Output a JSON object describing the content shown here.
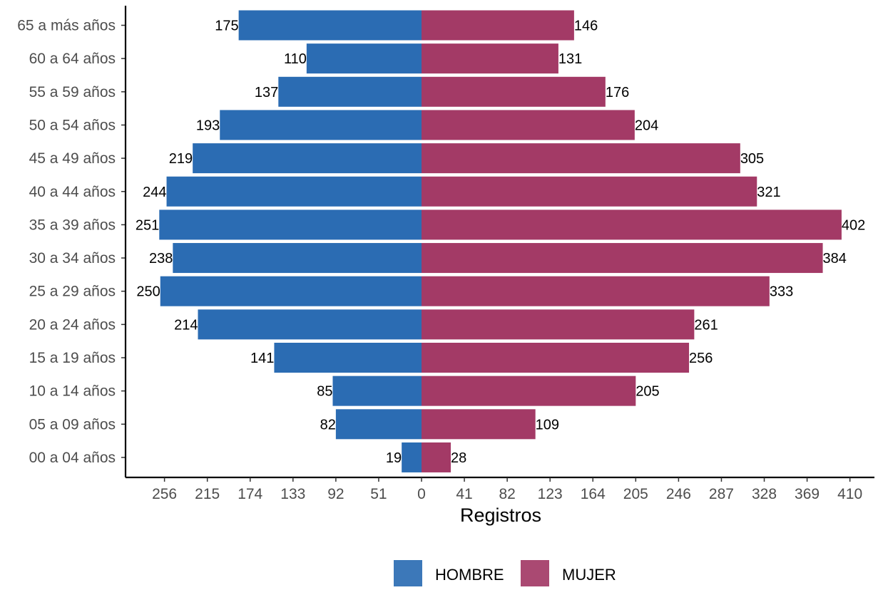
{
  "chart_data": {
    "type": "bar",
    "orientation": "horizontal",
    "layout": "population-pyramid",
    "xlabel": "Registros",
    "ylabel": "",
    "categories": [
      "00 a 04 años",
      "05 a 09 años",
      "10 a 14 años",
      "15 a 19 años",
      "20 a 24 años",
      "25 a 29 años",
      "30 a 34 años",
      "35 a 39 años",
      "40 a 44 años",
      "45 a 49 años",
      "50 a 54 años",
      "55 a 59 años",
      "60 a 64 años",
      "65 a más años"
    ],
    "series": [
      {
        "name": "HOMBRE",
        "side": "left",
        "color": "#2B6CB3",
        "values": [
          19,
          82,
          85,
          141,
          214,
          250,
          238,
          251,
          244,
          219,
          193,
          137,
          110,
          175
        ]
      },
      {
        "name": "MUJER",
        "side": "right",
        "color": "#A33A66",
        "values": [
          28,
          109,
          205,
          256,
          261,
          333,
          384,
          402,
          321,
          305,
          204,
          176,
          131,
          146
        ]
      }
    ],
    "xticks_left": [
      "256",
      "215",
      "174",
      "133",
      "92",
      "51"
    ],
    "xticks_right": [
      "0",
      "41",
      "82",
      "123",
      "164",
      "205",
      "246",
      "287",
      "328",
      "369",
      "410"
    ],
    "tick_step": 41,
    "xlim": [
      -262,
      434
    ],
    "grid": false,
    "legend_position": "bottom"
  }
}
